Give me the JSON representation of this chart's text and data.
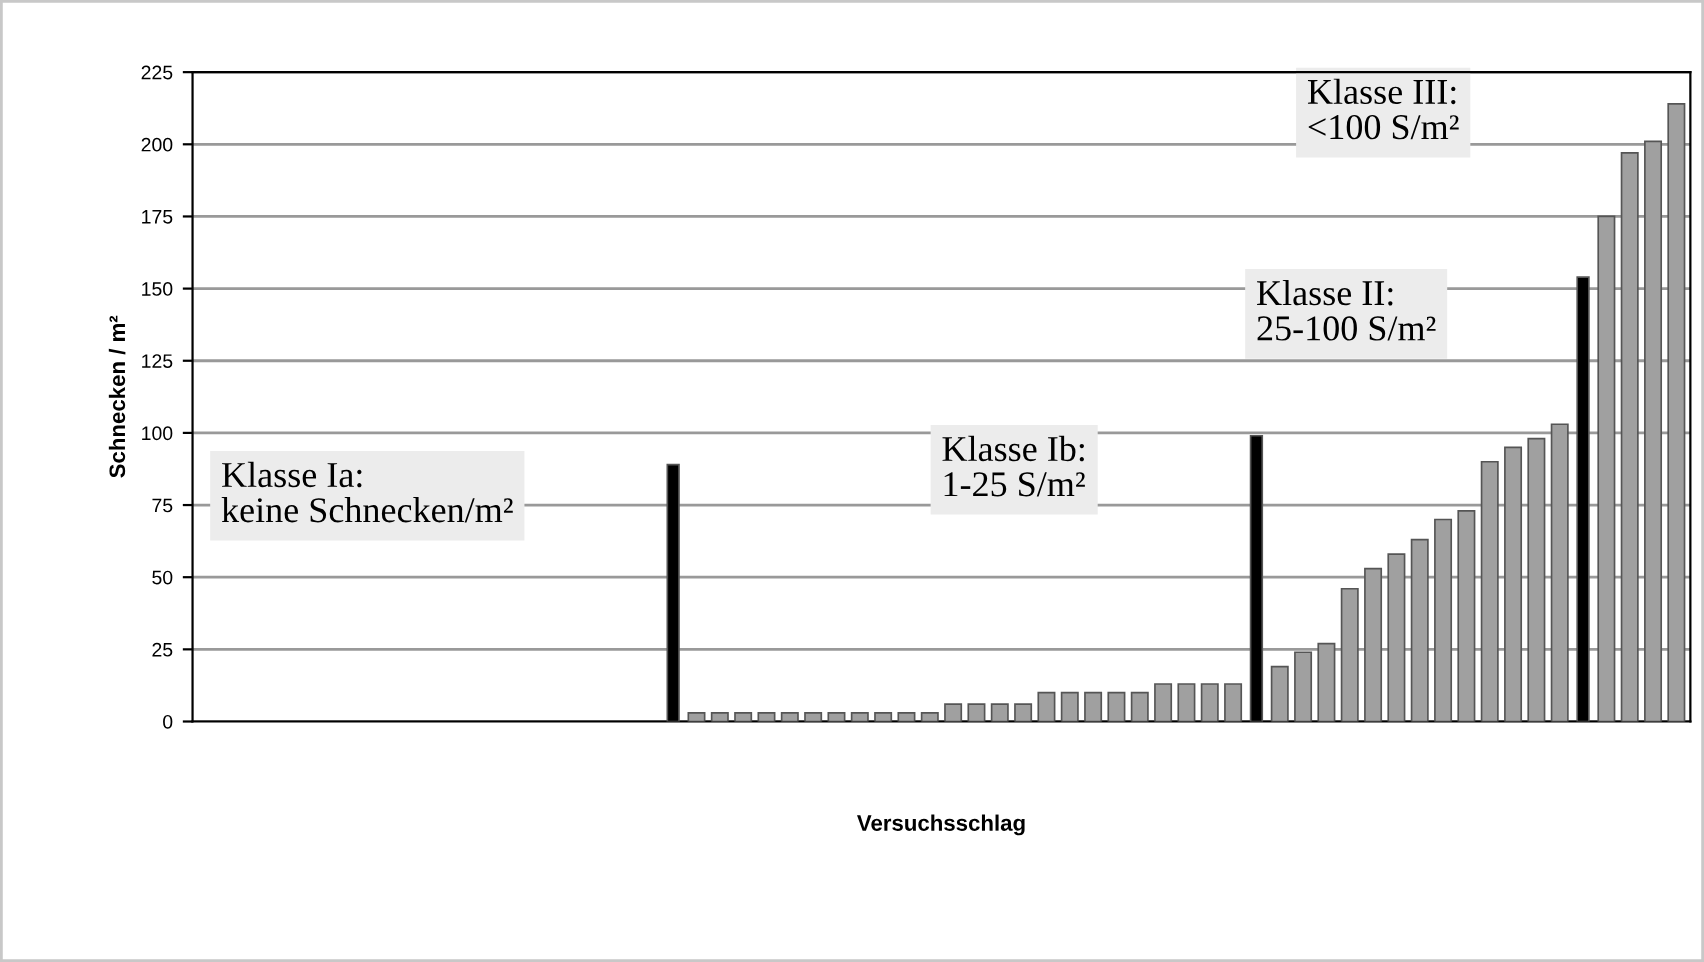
{
  "chart_data": {
    "type": "bar",
    "xlabel": "Versuchsschlag",
    "ylabel": "Schnecken / m²",
    "categories": [
      null,
      null,
      null,
      null,
      null,
      null,
      null,
      null,
      null,
      null,
      null,
      null,
      null,
      null,
      null,
      null,
      null,
      null,
      null,
      null,
      null,
      null,
      null,
      null,
      null,
      null,
      null,
      null,
      null,
      null,
      null,
      null,
      null,
      null,
      null,
      null,
      null,
      null,
      null,
      null,
      null,
      null,
      null,
      null,
      null,
      null,
      null,
      null,
      null,
      null,
      null,
      null,
      null,
      null,
      null,
      null,
      null,
      null,
      null,
      null,
      null,
      null,
      null,
      null
    ],
    "values": [
      0,
      0,
      0,
      0,
      0,
      0,
      0,
      0,
      0,
      0,
      0,
      0,
      0,
      0,
      0,
      0,
      0,
      0,
      0,
      0,
      89,
      3,
      3,
      3,
      3,
      3,
      3,
      3,
      3,
      3,
      3,
      3,
      6,
      6,
      6,
      6,
      10,
      10,
      10,
      10,
      10,
      13,
      13,
      13,
      13,
      99,
      19,
      24,
      27,
      46,
      53,
      58,
      63,
      70,
      73,
      90,
      95,
      98,
      103,
      154,
      175,
      197,
      201,
      214
    ],
    "colors": [
      "#a0a0a0",
      "#a0a0a0",
      "#a0a0a0",
      "#a0a0a0",
      "#a0a0a0",
      "#a0a0a0",
      "#a0a0a0",
      "#a0a0a0",
      "#a0a0a0",
      "#a0a0a0",
      "#a0a0a0",
      "#a0a0a0",
      "#a0a0a0",
      "#a0a0a0",
      "#a0a0a0",
      "#a0a0a0",
      "#a0a0a0",
      "#a0a0a0",
      "#a0a0a0",
      "#a0a0a0",
      "#000000",
      "#a0a0a0",
      "#a0a0a0",
      "#a0a0a0",
      "#a0a0a0",
      "#a0a0a0",
      "#a0a0a0",
      "#a0a0a0",
      "#a0a0a0",
      "#a0a0a0",
      "#a0a0a0",
      "#a0a0a0",
      "#a0a0a0",
      "#a0a0a0",
      "#a0a0a0",
      "#a0a0a0",
      "#a0a0a0",
      "#a0a0a0",
      "#a0a0a0",
      "#a0a0a0",
      "#a0a0a0",
      "#a0a0a0",
      "#a0a0a0",
      "#a0a0a0",
      "#a0a0a0",
      "#000000",
      "#a0a0a0",
      "#a0a0a0",
      "#a0a0a0",
      "#a0a0a0",
      "#a0a0a0",
      "#a0a0a0",
      "#a0a0a0",
      "#a0a0a0",
      "#a0a0a0",
      "#a0a0a0",
      "#a0a0a0",
      "#a0a0a0",
      "#a0a0a0",
      "#000000",
      "#a0a0a0",
      "#a0a0a0",
      "#a0a0a0",
      "#a0a0a0"
    ],
    "ylim": [
      0,
      225
    ],
    "yticks": [
      0,
      25,
      50,
      75,
      100,
      125,
      150,
      175,
      200,
      225
    ],
    "grid": "y",
    "annotations": [
      "Klasse Ia:\nkeine Schnecken/m²",
      "Klasse Ib:\n1-25 S/m²",
      "Klasse II:\n25-100 S/m²",
      "Klasse III:\n<100 S/m²"
    ]
  }
}
